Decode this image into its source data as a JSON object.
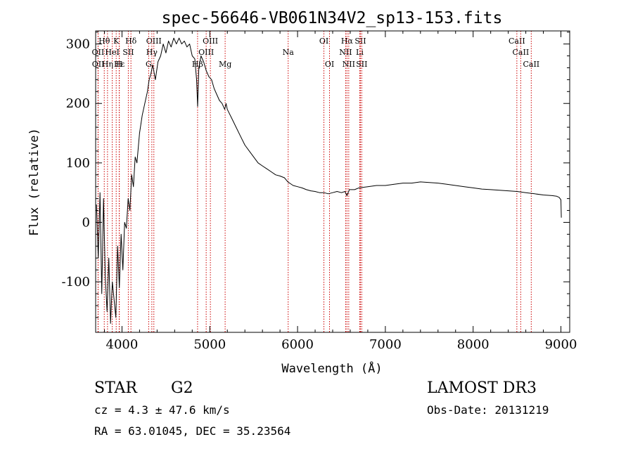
{
  "chart_data": {
    "type": "line",
    "title": "spec-56646-VB061N34V2_sp13-153.fits",
    "xlabel": "Wavelength (Å)",
    "ylabel": "Flux (relative)",
    "xlim": [
      3700,
      9100
    ],
    "ylim": [
      -185,
      322
    ],
    "x_ticks": [
      4000,
      5000,
      6000,
      7000,
      8000,
      9000
    ],
    "y_ticks": [
      -100,
      0,
      100,
      200,
      300
    ],
    "grid": false,
    "series": [
      {
        "name": "spectrum",
        "color": "#000000",
        "x": [
          3710,
          3730,
          3750,
          3770,
          3790,
          3810,
          3830,
          3850,
          3870,
          3890,
          3910,
          3930,
          3950,
          3970,
          3990,
          4010,
          4030,
          4050,
          4070,
          4090,
          4110,
          4130,
          4150,
          4170,
          4200,
          4230,
          4260,
          4290,
          4310,
          4330,
          4350,
          4380,
          4410,
          4440,
          4470,
          4500,
          4530,
          4560,
          4590,
          4620,
          4650,
          4680,
          4710,
          4740,
          4770,
          4800,
          4830,
          4850,
          4862,
          4875,
          4900,
          4930,
          4960,
          4990,
          5020,
          5050,
          5080,
          5110,
          5140,
          5170,
          5185,
          5200,
          5250,
          5300,
          5350,
          5400,
          5450,
          5500,
          5550,
          5600,
          5650,
          5700,
          5750,
          5800,
          5850,
          5890,
          5920,
          5950,
          6000,
          6050,
          6100,
          6150,
          6200,
          6250,
          6300,
          6350,
          6400,
          6450,
          6500,
          6540,
          6563,
          6590,
          6650,
          6700,
          6800,
          6900,
          7000,
          7100,
          7200,
          7300,
          7400,
          7500,
          7600,
          7700,
          7800,
          7900,
          8000,
          8100,
          8200,
          8300,
          8400,
          8500,
          8600,
          8700,
          8800,
          8900,
          8950,
          8980,
          9000,
          9005
        ],
        "y": [
          30,
          -60,
          50,
          -120,
          40,
          -90,
          -150,
          -60,
          -170,
          -100,
          -130,
          -160,
          -40,
          -110,
          -20,
          -80,
          0,
          -10,
          40,
          20,
          80,
          60,
          110,
          100,
          150,
          180,
          200,
          220,
          240,
          250,
          265,
          240,
          270,
          280,
          300,
          285,
          305,
          295,
          310,
          300,
          310,
          300,
          305,
          295,
          300,
          280,
          275,
          240,
          195,
          260,
          280,
          270,
          255,
          245,
          240,
          225,
          215,
          205,
          200,
          190,
          200,
          190,
          175,
          160,
          145,
          130,
          120,
          110,
          100,
          95,
          90,
          85,
          80,
          78,
          75,
          68,
          65,
          62,
          60,
          58,
          55,
          53,
          52,
          50,
          50,
          48,
          50,
          52,
          50,
          52,
          45,
          55,
          55,
          58,
          60,
          62,
          62,
          64,
          66,
          66,
          68,
          67,
          66,
          64,
          62,
          60,
          58,
          56,
          55,
          54,
          53,
          52,
          50,
          48,
          46,
          45,
          44,
          42,
          38,
          8
        ]
      }
    ],
    "emission_lines": [
      {
        "label": "Hθ",
        "x": 3798,
        "row": 1
      },
      {
        "label": "K",
        "x": 3934,
        "row": 1
      },
      {
        "label": "Hδ",
        "x": 4102,
        "row": 1
      },
      {
        "label": "OIII",
        "x": 4363,
        "row": 1
      },
      {
        "label": "OIII",
        "x": 5007,
        "row": 1
      },
      {
        "label": "OI",
        "x": 6300,
        "row": 1
      },
      {
        "label": "Hα",
        "x": 6563,
        "row": 1
      },
      {
        "label": "SII",
        "x": 6716,
        "row": 1
      },
      {
        "label": "CaII",
        "x": 8498,
        "row": 1
      },
      {
        "label": "OII",
        "x": 3727,
        "row": 2
      },
      {
        "label": "HeI",
        "x": 3889,
        "row": 2
      },
      {
        "label": "SII",
        "x": 4072,
        "row": 2
      },
      {
        "label": "Hγ",
        "x": 4340,
        "row": 2
      },
      {
        "label": "OIII",
        "x": 4959,
        "row": 2
      },
      {
        "label": "Na",
        "x": 5893,
        "row": 2
      },
      {
        "label": "NII",
        "x": 6548,
        "row": 2
      },
      {
        "label": "Li",
        "x": 6708,
        "row": 2
      },
      {
        "label": "CaII",
        "x": 8542,
        "row": 2
      },
      {
        "label": "OII",
        "x": 3729,
        "row": 3
      },
      {
        "label": "Hε",
        "x": 3970,
        "row": 3
      },
      {
        "label": "Hη",
        "x": 3835,
        "row": 3
      },
      {
        "label": "H",
        "x": 3968,
        "row": 3
      },
      {
        "label": "G",
        "x": 4304,
        "row": 3
      },
      {
        "label": "Hβ",
        "x": 4861,
        "row": 3
      },
      {
        "label": "Mg",
        "x": 5175,
        "row": 3
      },
      {
        "label": "OI",
        "x": 6364,
        "row": 3
      },
      {
        "label": "NII",
        "x": 6583,
        "row": 3
      },
      {
        "label": "SII",
        "x": 6731,
        "row": 3
      },
      {
        "label": "CaII",
        "x": 8662,
        "row": 3
      }
    ]
  },
  "info": {
    "object_class": "STAR",
    "subclass": "G2",
    "redshift_line": "cz = 4.3 ± 47.6 km/s",
    "coords_line": "RA =  63.01045, DEC =  35.23564",
    "survey": "LAMOST DR3",
    "obs_date_line": "Obs-Date: 20131219"
  },
  "colors": {
    "line_marker": "#cc0000",
    "axis": "#000000"
  }
}
